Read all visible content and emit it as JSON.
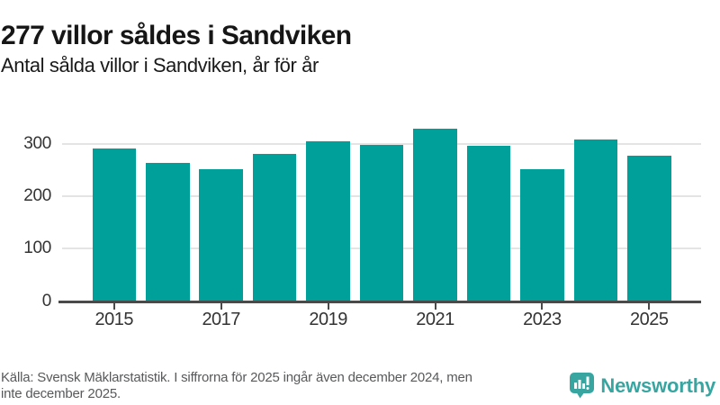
{
  "header": {
    "title": "277 villor såldes i Sandviken",
    "subtitle": "Antal sålda villor i Sandviken, år för år"
  },
  "chart_data": {
    "type": "bar",
    "title": "277 villor såldes i Sandviken",
    "subtitle": "Antal sålda villor i Sandviken, år för år",
    "categories": [
      "2015",
      "2016",
      "2017",
      "2018",
      "2019",
      "2020",
      "2021",
      "2022",
      "2023",
      "2024",
      "2025"
    ],
    "values": [
      290,
      263,
      252,
      281,
      304,
      298,
      328,
      296,
      251,
      307,
      277
    ],
    "xlabel": "",
    "ylabel": "",
    "ylim": [
      0,
      340
    ],
    "yticks": [
      0,
      100,
      200,
      300
    ],
    "xtick_labels": [
      "2015",
      "2017",
      "2019",
      "2021",
      "2023",
      "2025"
    ],
    "grid": true,
    "legend": false,
    "bar_color": "#00a09a",
    "grid_color": "#e4e4e4",
    "axis_color": "#4a4a4b"
  },
  "footer": {
    "source_line1": "Källa: Svensk Mäklarstatistik. I siffrorna för 2025 ingår även december 2024, men",
    "source_line2": "inte december 2025.",
    "brand": "Newsworthy",
    "brand_color": "#38a5a1"
  }
}
